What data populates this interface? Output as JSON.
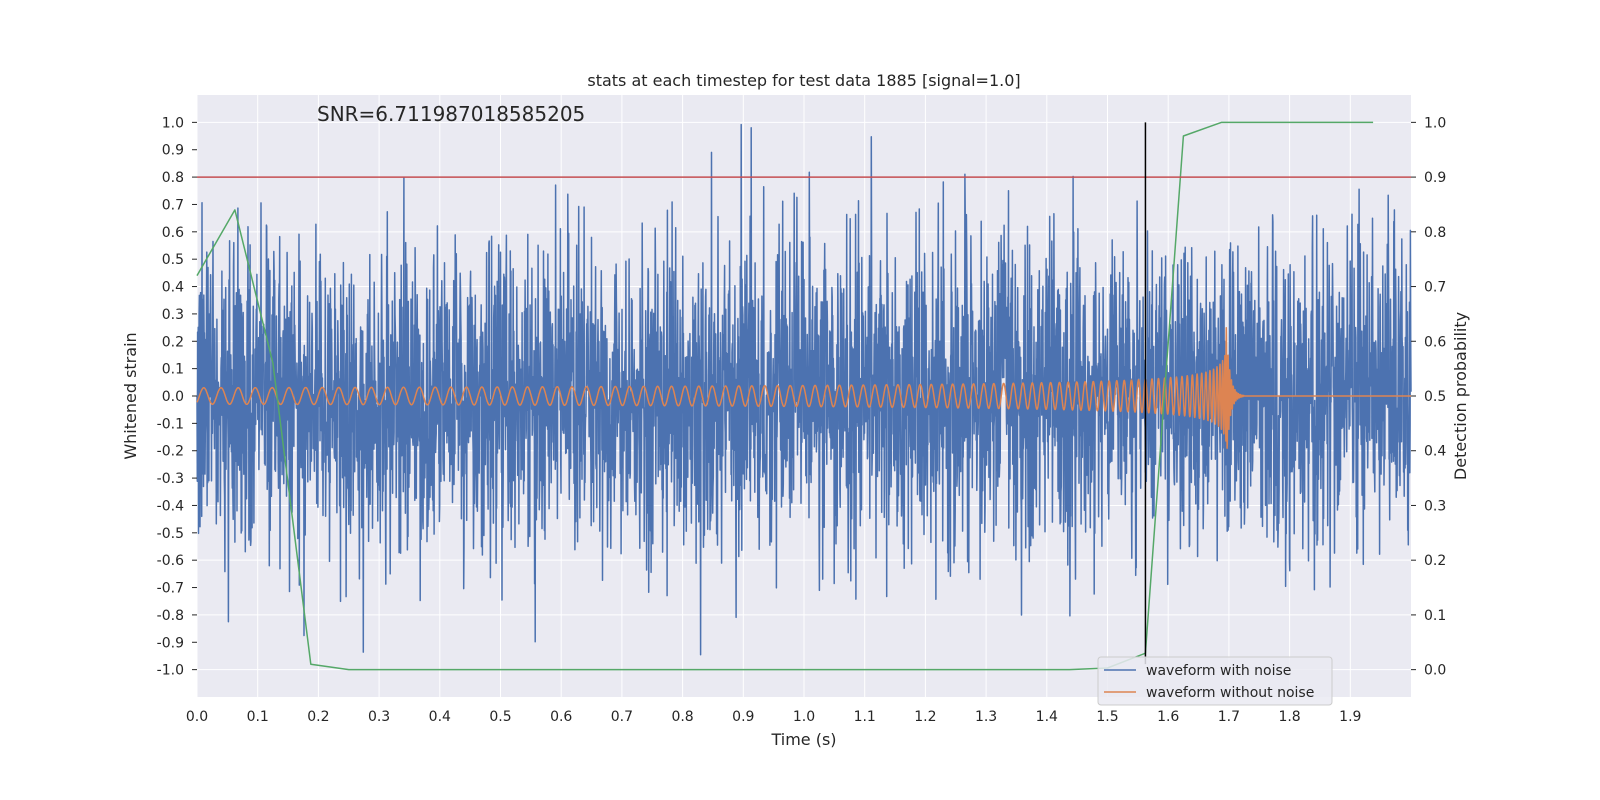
{
  "chart_data": {
    "type": "line",
    "title": "stats at each timestep for test data 1885 [signal=1.0]",
    "annotation": "SNR=6.711987018585205",
    "xlabel": "Time (s)",
    "ylabel": "Whitened strain",
    "y2label": "Detection probability",
    "xlim": [
      0.0,
      2.0
    ],
    "ylim": [
      -1.1,
      1.1
    ],
    "y2lim": [
      -0.05,
      1.05
    ],
    "xticks": [
      0.0,
      0.1,
      0.2,
      0.3,
      0.4,
      0.5,
      0.6,
      0.7,
      0.8,
      0.9,
      1.0,
      1.1,
      1.2,
      1.3,
      1.4,
      1.5,
      1.6,
      1.7,
      1.8,
      1.9
    ],
    "yticks": [
      -1.0,
      -0.9,
      -0.8,
      -0.7,
      -0.6,
      -0.5,
      -0.4,
      -0.3,
      -0.2,
      -0.1,
      0.0,
      0.1,
      0.2,
      0.3,
      0.4,
      0.5,
      0.6,
      0.7,
      0.8,
      0.9,
      1.0
    ],
    "y2ticks": [
      0.0,
      0.1,
      0.2,
      0.3,
      0.4,
      0.5,
      0.6,
      0.7,
      0.8,
      0.9,
      1.0
    ],
    "grid": true,
    "threshold": {
      "axis": "y2",
      "value": 0.9,
      "color": "#c44e52"
    },
    "vline": {
      "x": 1.5625,
      "y_from": -0.98,
      "y_to": 1.0,
      "color": "#000000"
    },
    "series": [
      {
        "name": "waveform with noise",
        "axis": "y",
        "color": "#4c72b0",
        "kind": "noise",
        "sample_rate": 2048,
        "amplitude_std": 0.28,
        "clip": [
          -0.99,
          1.0
        ]
      },
      {
        "name": "waveform without noise",
        "axis": "y",
        "color": "#dd8452",
        "kind": "chirp",
        "start_frequency_hz": 35,
        "merger_time_s": 1.695,
        "base_amplitude": 0.03,
        "peak_amplitude": 0.28
      },
      {
        "name": "detection probability",
        "axis": "y2",
        "color": "#55a868",
        "kind": "steps",
        "x": [
          0.0,
          0.0625,
          0.125,
          0.1875,
          0.25,
          0.3125,
          0.375,
          0.4375,
          0.5,
          0.5625,
          0.625,
          0.6875,
          0.75,
          0.8125,
          0.875,
          0.9375,
          1.0,
          1.0625,
          1.125,
          1.1875,
          1.25,
          1.3125,
          1.375,
          1.4375,
          1.5,
          1.5625,
          1.625,
          1.6875,
          1.75,
          1.8125,
          1.875,
          1.9375
        ],
        "values": [
          0.72,
          0.84,
          0.56,
          0.01,
          0.0,
          0.0,
          0.0,
          0.0,
          0.0,
          0.0,
          0.0,
          0.0,
          0.0,
          0.0,
          0.0,
          0.0,
          0.0,
          0.0,
          0.0,
          0.0,
          0.0,
          0.0,
          0.0,
          0.0,
          0.003,
          0.03,
          0.975,
          1.0,
          1.0,
          1.0,
          1.0,
          1.0
        ]
      }
    ],
    "legend": {
      "location": "lower-right",
      "entries": [
        {
          "label": "waveform with noise",
          "color": "#4c72b0"
        },
        {
          "label": "waveform without noise",
          "color": "#dd8452"
        }
      ]
    }
  }
}
